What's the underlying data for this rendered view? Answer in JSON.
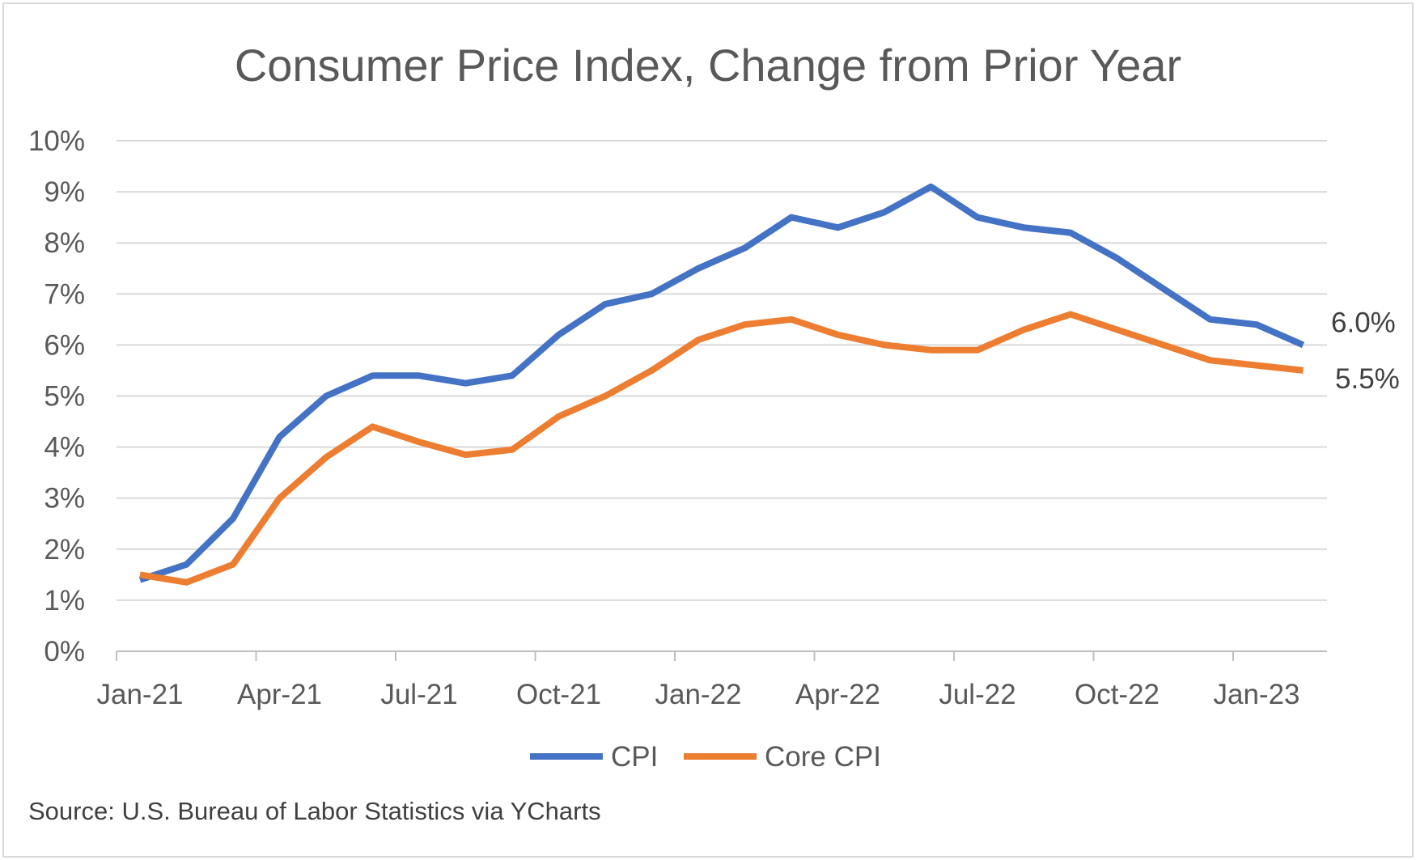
{
  "chart_data": {
    "type": "line",
    "title": "Consumer Price Index, Change from Prior Year",
    "source": "Source: U.S. Bureau of Labor Statistics via YCharts",
    "y_ticks": [
      "0%",
      "1%",
      "2%",
      "3%",
      "4%",
      "5%",
      "6%",
      "7%",
      "8%",
      "9%",
      "10%"
    ],
    "ylim": [
      0,
      10
    ],
    "y_unit": "%",
    "x_tick_labels": [
      "Jan-21",
      "Apr-21",
      "Jul-21",
      "Oct-21",
      "Jan-22",
      "Apr-22",
      "Jul-22",
      "Oct-22",
      "Jan-23"
    ],
    "x": [
      "2021-01",
      "2021-02",
      "2021-03",
      "2021-04",
      "2021-05",
      "2021-06",
      "2021-07",
      "2021-08",
      "2021-09",
      "2021-10",
      "2021-11",
      "2021-12",
      "2022-01",
      "2022-02",
      "2022-03",
      "2022-04",
      "2022-05",
      "2022-06",
      "2022-07",
      "2022-08",
      "2022-09",
      "2022-10",
      "2022-11",
      "2022-12",
      "2023-01",
      "2023-02"
    ],
    "grid": true,
    "legend_position": "bottom",
    "series": [
      {
        "name": "CPI",
        "color": "#4472c4",
        "end_label": "6.0%",
        "values": [
          1.4,
          1.7,
          2.6,
          4.2,
          5.0,
          5.4,
          5.4,
          5.25,
          5.4,
          6.2,
          6.8,
          7.0,
          7.5,
          7.9,
          8.5,
          8.3,
          8.6,
          9.1,
          8.5,
          8.3,
          8.2,
          7.7,
          7.1,
          6.5,
          6.4,
          6.0
        ]
      },
      {
        "name": "Core CPI",
        "color": "#ed7d31",
        "end_label": "5.5%",
        "values": [
          1.5,
          1.35,
          1.7,
          3.0,
          3.8,
          4.4,
          4.1,
          3.85,
          3.95,
          4.6,
          5.0,
          5.5,
          6.1,
          6.4,
          6.5,
          6.2,
          6.0,
          5.9,
          5.9,
          6.3,
          6.6,
          6.3,
          6.0,
          5.7,
          5.6,
          5.5
        ]
      }
    ]
  }
}
